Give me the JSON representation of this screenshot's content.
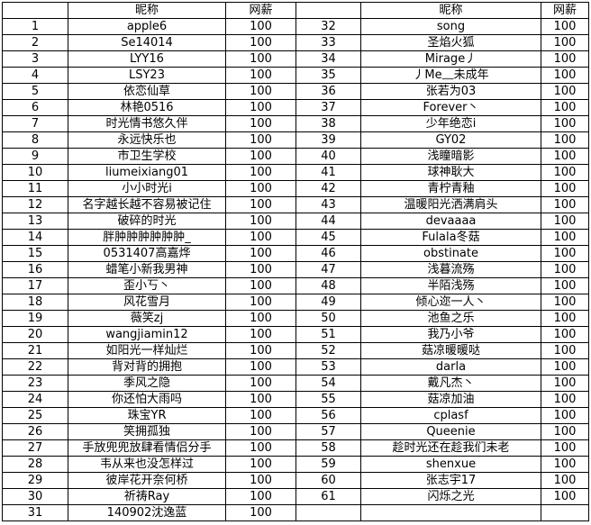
{
  "table": {
    "columns": [
      "昵称",
      "网薪"
    ],
    "rows": [
      [
        1,
        "apple6",
        100
      ],
      [
        2,
        "Se14014",
        100
      ],
      [
        3,
        "LYY16",
        100
      ],
      [
        4,
        "LSY23",
        100
      ],
      [
        5,
        "依恋仙草",
        100
      ],
      [
        6,
        "林艳0516",
        100
      ],
      [
        7,
        "时光情书悠久伴",
        100
      ],
      [
        8,
        "永远快乐也",
        100
      ],
      [
        9,
        "市卫生学校",
        100
      ],
      [
        10,
        "liumeixiang01",
        100
      ],
      [
        11,
        "小小时光i",
        100
      ],
      [
        12,
        "名字越长越不容易被记住",
        100
      ],
      [
        13,
        "破碎的时光",
        100
      ],
      [
        14,
        "胖肿肿肿肿肿肿_",
        100
      ],
      [
        15,
        "0531407高嘉烨",
        100
      ],
      [
        16,
        "蜡笔小新我男神",
        100
      ],
      [
        17,
        "歪小丂丶",
        100
      ],
      [
        18,
        "风花雪月",
        100
      ],
      [
        19,
        "薇笑zj",
        100
      ],
      [
        20,
        "wangjiamin12",
        100
      ],
      [
        21,
        "如阳光一样灿烂",
        100
      ],
      [
        22,
        "背对背的拥抱",
        100
      ],
      [
        23,
        "季风之隐",
        100
      ],
      [
        24,
        "你还怕大雨吗",
        100
      ],
      [
        25,
        "珠宝YR",
        100
      ],
      [
        26,
        "笑拥孤独",
        100
      ],
      [
        27,
        "手放兜兜放肆看情侣分手",
        100
      ],
      [
        28,
        "韦从来也没怎样过",
        100
      ],
      [
        29,
        "彼岸花开奈何桥",
        100
      ],
      [
        30,
        "祈祷Ray",
        100
      ],
      [
        31,
        "140902沈逸蓝",
        100
      ],
      [
        32,
        "song",
        100
      ],
      [
        33,
        "圣焰火狐",
        100
      ],
      [
        34,
        "Mirage丿",
        100
      ],
      [
        35,
        "丿Me﹏未成年",
        100
      ],
      [
        36,
        "张若为03",
        100
      ],
      [
        37,
        "Forever丶",
        100
      ],
      [
        38,
        "少年绝恋i",
        100
      ],
      [
        39,
        "GY02",
        100
      ],
      [
        40,
        "浅瞳暗影",
        100
      ],
      [
        41,
        "球神耿大",
        100
      ],
      [
        42,
        "青柠青釉",
        100
      ],
      [
        43,
        "温暖阳光洒满肩头",
        100
      ],
      [
        44,
        "devaaaa",
        100
      ],
      [
        45,
        "Fulala冬菇",
        100
      ],
      [
        46,
        "obstinate",
        100
      ],
      [
        47,
        "浅暮流殇",
        100
      ],
      [
        48,
        "半陌浅殇",
        100
      ],
      [
        49,
        "倾心迩一人丶",
        100
      ],
      [
        50,
        "池鱼之乐",
        100
      ],
      [
        51,
        "我乃小爷",
        100
      ],
      [
        52,
        "菇凉暖暖哒",
        100
      ],
      [
        53,
        "darla",
        100
      ],
      [
        54,
        "戴凡杰丶",
        100
      ],
      [
        55,
        "菇凉加油",
        100
      ],
      [
        56,
        "cplasf",
        100
      ],
      [
        57,
        "Queenie",
        100
      ],
      [
        58,
        "趁时光还在趁我们未老",
        100
      ],
      [
        59,
        "shenxue",
        100
      ],
      [
        60,
        "张志宇17",
        100
      ],
      [
        61,
        "闪烁之光",
        100
      ]
    ]
  }
}
